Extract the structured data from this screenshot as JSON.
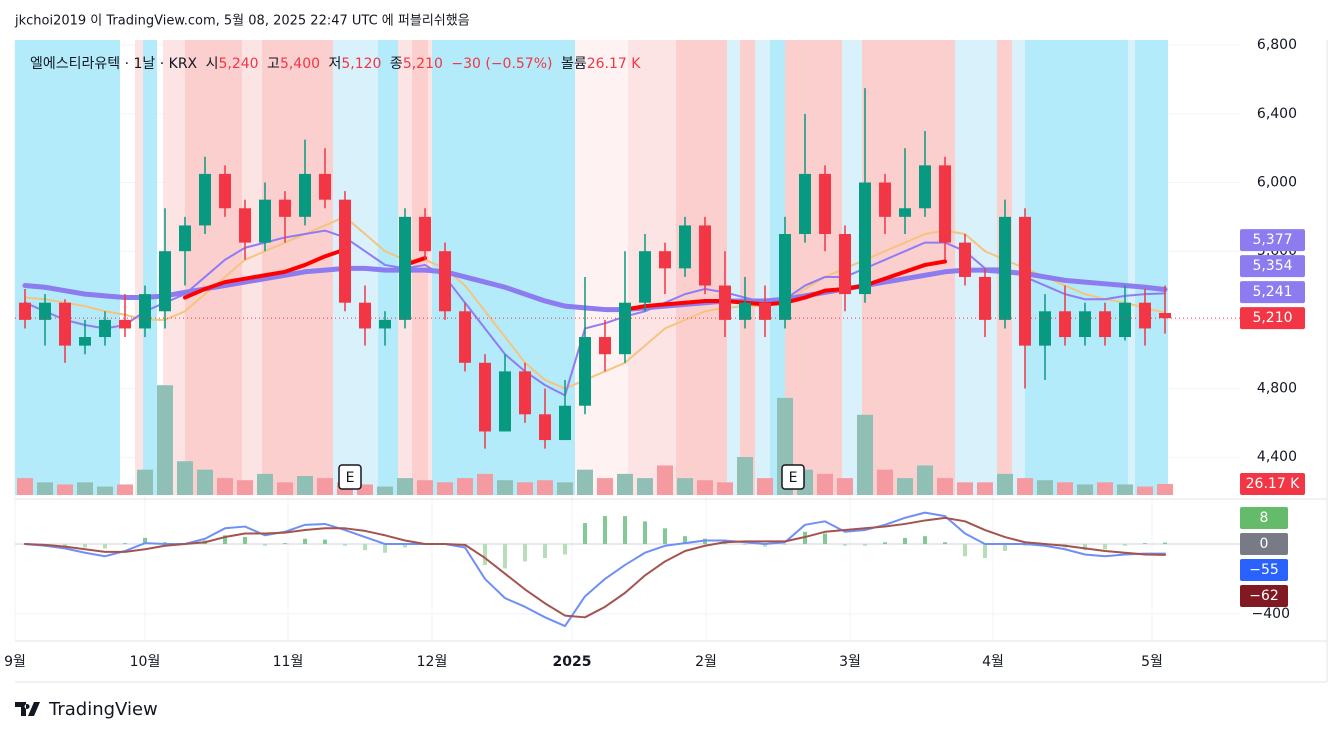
{
  "top_caption": "jkchoi2019 이 TradingView.com, 5월 08, 2025 22:47 UTC 에 퍼블리쉬했음",
  "header": {
    "symbol": "엘에스티라유텍 · 1날 · KRX",
    "open_label": "시",
    "open": "5,240",
    "high_label": "고",
    "high": "5,400",
    "low_label": "저",
    "low": "5,120",
    "close_label": "종",
    "close": "5,210",
    "change": "−30 (−0.57%)",
    "volume_label": "볼륨",
    "volume": "26.17 K"
  },
  "footer": "TradingView",
  "chart_data": {
    "type": "candlestick",
    "open": [
      5300,
      5200,
      5300,
      5050,
      5100,
      5200,
      5150,
      5250,
      5600,
      5750,
      6050,
      5850,
      5650,
      5900,
      5800,
      6050,
      5900,
      5300,
      5150,
      5200,
      5800,
      5600,
      5250,
      4950,
      4550,
      4900,
      4650,
      4500,
      4700,
      5100,
      5000,
      5300,
      5600,
      5500,
      5750,
      5400,
      5200,
      5300,
      5200,
      5700,
      6050,
      5700,
      5350,
      6000,
      5800,
      5850,
      6100,
      5650,
      5450,
      5200,
      5800,
      5050,
      5250,
      5100,
      5250,
      5100,
      5300,
      5240
    ],
    "high": [
      5380,
      5350,
      5320,
      5200,
      5250,
      5350,
      5400,
      5850,
      5800,
      6150,
      6100,
      5900,
      6000,
      5950,
      6250,
      6200,
      5950,
      5400,
      5250,
      5850,
      5850,
      5650,
      5300,
      5000,
      5000,
      4950,
      4800,
      4850,
      5450,
      5200,
      5600,
      5700,
      5650,
      5800,
      5800,
      5600,
      5450,
      5400,
      5800,
      6400,
      6100,
      5750,
      6550,
      6050,
      6200,
      6300,
      6150,
      5700,
      5500,
      5900,
      5850,
      5350,
      5400,
      5300,
      5300,
      5400,
      5380,
      5400
    ],
    "low": [
      5150,
      5050,
      4950,
      5000,
      5050,
      5100,
      5100,
      5150,
      5400,
      5700,
      5800,
      5550,
      5600,
      5650,
      5750,
      5850,
      5250,
      5050,
      5050,
      5150,
      5550,
      5200,
      4900,
      4450,
      4550,
      4600,
      4450,
      4500,
      4650,
      4900,
      4950,
      5250,
      5350,
      5450,
      5350,
      5100,
      5150,
      5100,
      5150,
      5650,
      5600,
      5250,
      5300,
      5700,
      5700,
      5800,
      5550,
      5400,
      5100,
      5150,
      4800,
      4850,
      5050,
      5050,
      5050,
      5080,
      5050,
      5120
    ],
    "close": [
      5200,
      5300,
      5050,
      5100,
      5200,
      5150,
      5350,
      5600,
      5750,
      6050,
      5850,
      5650,
      5900,
      5800,
      6050,
      5900,
      5300,
      5150,
      5200,
      5800,
      5600,
      5250,
      4950,
      4550,
      4900,
      4650,
      4500,
      4700,
      5100,
      5000,
      5300,
      5600,
      5500,
      5750,
      5400,
      5200,
      5300,
      5200,
      5700,
      6050,
      5700,
      5350,
      6000,
      5800,
      5850,
      6100,
      5650,
      5450,
      5200,
      5800,
      5050,
      5250,
      5100,
      5250,
      5100,
      5300,
      5150,
      5210
    ],
    "up_color": "#089981",
    "down_color": "#f23645",
    "last_label": "5,210",
    "xticks": [
      {
        "value": -0.5,
        "label": "9월"
      },
      {
        "value": 6,
        "label": "10월"
      },
      {
        "value": 13.15,
        "label": "11월"
      },
      {
        "value": 20.35,
        "label": "12월"
      },
      {
        "value": 27.35,
        "label": "2025"
      },
      {
        "value": 34.05,
        "label": "2월"
      },
      {
        "value": 41.25,
        "label": "3월"
      },
      {
        "value": 48.4,
        "label": "4월"
      },
      {
        "value": 56.35,
        "label": "5월"
      }
    ],
    "ylim": [
      4180,
      6830
    ],
    "yticks": [
      {
        "value": 4400,
        "label": "4,400"
      },
      {
        "value": 4800,
        "label": "4,800"
      },
      {
        "value": 5200,
        "label": "5,200"
      },
      {
        "value": 5600,
        "label": "5,600"
      },
      {
        "value": 6000,
        "label": "6,000"
      },
      {
        "value": 6400,
        "label": "6,400"
      },
      {
        "value": 6800,
        "label": "6,800"
      }
    ],
    "grid": true,
    "lines": [
      {
        "color": "#f5c47f",
        "width": 2,
        "label_color": "#8c7cf0",
        "last_label": "5,241",
        "values": [
          5330,
          5320,
          5300,
          5280,
          5250,
          5230,
          5200,
          5200,
          5250,
          5350,
          5450,
          5550,
          5600,
          5650,
          5700,
          5750,
          5800,
          5700,
          5600,
          5550,
          5550,
          5500,
          5400,
          5250,
          5100,
          4950,
          4850,
          4800,
          4850,
          4900,
          4950,
          5050,
          5150,
          5200,
          5250,
          5270,
          5280,
          5280,
          5300,
          5380,
          5450,
          5500,
          5550,
          5600,
          5650,
          5700,
          5720,
          5700,
          5600,
          5550,
          5500,
          5450,
          5400,
          5350,
          5320,
          5300,
          5270,
          5241
        ]
      },
      {
        "color": "#8f7cf5",
        "width": 2,
        "label_color": "#8c7cf0",
        "last_label": "5,354",
        "values": [
          5300,
          5250,
          5200,
          5170,
          5150,
          5170,
          5250,
          5300,
          5350,
          5450,
          5550,
          5620,
          5650,
          5680,
          5700,
          5720,
          5680,
          5600,
          5520,
          5500,
          5520,
          5450,
          5300,
          5150,
          5000,
          4900,
          4820,
          4760,
          5150,
          5180,
          5220,
          5250,
          5300,
          5350,
          5380,
          5360,
          5330,
          5300,
          5320,
          5400,
          5450,
          5450,
          5500,
          5550,
          5600,
          5650,
          5650,
          5600,
          5500,
          5500,
          5450,
          5400,
          5350,
          5320,
          5320,
          5340,
          5350,
          5354
        ]
      },
      {
        "color": "#8c7cf0",
        "width": 5,
        "label_color": "#8c7cf0",
        "last_label": "5,377",
        "values": [
          5400,
          5390,
          5370,
          5350,
          5340,
          5330,
          5330,
          5340,
          5360,
          5380,
          5400,
          5420,
          5440,
          5460,
          5480,
          5490,
          5500,
          5500,
          5490,
          5490,
          5490,
          5480,
          5450,
          5420,
          5390,
          5350,
          5310,
          5280,
          5270,
          5260,
          5260,
          5270,
          5280,
          5290,
          5300,
          5310,
          5310,
          5310,
          5320,
          5340,
          5360,
          5380,
          5400,
          5420,
          5440,
          5460,
          5480,
          5490,
          5490,
          5480,
          5470,
          5450,
          5430,
          5420,
          5410,
          5400,
          5390,
          5377
        ]
      },
      {
        "color": "#ff0000",
        "width": 4,
        "values": [
          null,
          null,
          null,
          null,
          null,
          null,
          null,
          null,
          5330,
          5380,
          5420,
          5440,
          5460,
          5480,
          5520,
          5570,
          5610,
          null,
          null,
          5520,
          5560,
          null,
          null,
          null,
          null,
          null,
          null,
          null,
          null,
          null,
          5260,
          5280,
          5290,
          5300,
          5310,
          5310,
          5300,
          5290,
          5300,
          5330,
          5370,
          5380,
          5400,
          5440,
          5480,
          5520,
          5540,
          null,
          null,
          null,
          null,
          null,
          null,
          null,
          null,
          null,
          null,
          null
        ]
      }
    ],
    "volume": {
      "ylim": [
        0,
        450000
      ],
      "last_label": "26.17 K",
      "up_color": "#8fbfb5",
      "down_color": "#f59aa0",
      "values": [
        40000,
        30000,
        25000,
        30000,
        20000,
        25000,
        60000,
        260000,
        80000,
        60000,
        40000,
        35000,
        50000,
        30000,
        45000,
        40000,
        30000,
        25000,
        20000,
        40000,
        35000,
        30000,
        40000,
        50000,
        35000,
        30000,
        35000,
        30000,
        60000,
        40000,
        50000,
        40000,
        70000,
        40000,
        35000,
        30000,
        90000,
        40000,
        230000,
        60000,
        50000,
        40000,
        190000,
        60000,
        40000,
        70000,
        40000,
        30000,
        30000,
        50000,
        40000,
        35000,
        30000,
        25000,
        30000,
        25000,
        20000,
        26170
      ]
    },
    "zones": [
      {
        "from": -0.5,
        "to": 4.75,
        "color": "#b3ebfa"
      },
      {
        "from": 5.5,
        "to": 5.9,
        "color": "#fde4e4"
      },
      {
        "from": 5.9,
        "to": 6.6,
        "color": "#b3ebfa"
      },
      {
        "from": 6.9,
        "to": 8.0,
        "color": "#fde4e4"
      },
      {
        "from": 8.0,
        "to": 10.85,
        "color": "#fccfcf"
      },
      {
        "from": 10.85,
        "to": 11.85,
        "color": "#fde4e4"
      },
      {
        "from": 11.85,
        "to": 15.4,
        "color": "#fccfcf"
      },
      {
        "from": 15.4,
        "to": 17.65,
        "color": "#d9f1fb"
      },
      {
        "from": 17.65,
        "to": 18.65,
        "color": "#b3ebfa"
      },
      {
        "from": 18.65,
        "to": 19.35,
        "color": "#fde4e4"
      },
      {
        "from": 19.35,
        "to": 20.15,
        "color": "#fccfcf"
      },
      {
        "from": 20.15,
        "to": 20.35,
        "color": "#fde4e4"
      },
      {
        "from": 20.35,
        "to": 27.5,
        "color": "#b3ebfa"
      },
      {
        "from": 27.5,
        "to": 30.15,
        "color": "#fff2f2"
      },
      {
        "from": 30.15,
        "to": 32.55,
        "color": "#fde4e4"
      },
      {
        "from": 32.55,
        "to": 35.1,
        "color": "#fccfcf"
      },
      {
        "from": 35.1,
        "to": 35.75,
        "color": "#d9f1fb"
      },
      {
        "from": 35.75,
        "to": 36.5,
        "color": "#fccfcf"
      },
      {
        "from": 36.5,
        "to": 37.25,
        "color": "#d9f1fb"
      },
      {
        "from": 37.25,
        "to": 38.0,
        "color": "#b3ebfa"
      },
      {
        "from": 38.0,
        "to": 40.85,
        "color": "#fccfcf"
      },
      {
        "from": 40.85,
        "to": 41.85,
        "color": "#d9f1fb"
      },
      {
        "from": 41.85,
        "to": 46.5,
        "color": "#fccfcf"
      },
      {
        "from": 46.5,
        "to": 48.6,
        "color": "#d9f1fb"
      },
      {
        "from": 48.6,
        "to": 49.35,
        "color": "#fccfcf"
      },
      {
        "from": 49.35,
        "to": 50.0,
        "color": "#d9f1fb"
      },
      {
        "from": 50.0,
        "to": 55.15,
        "color": "#b3ebfa"
      },
      {
        "from": 55.15,
        "to": 55.5,
        "color": "#d9f1fb"
      },
      {
        "from": 55.5,
        "to": 57.15,
        "color": "#b3ebfa"
      }
    ],
    "events": [
      {
        "x": 16.25,
        "label": "E"
      },
      {
        "x": 38.4,
        "label": "E"
      }
    ],
    "macd": {
      "ylim": [
        -550,
        235
      ],
      "yticks": [
        {
          "value": -400,
          "label": "−400"
        }
      ],
      "zero_line": 0,
      "zero_color": "#787b86",
      "histogram": {
        "up_color": "#81c995",
        "down_color": "#b5deb9",
        "last_label": "8",
        "label_color": "#66bb6a",
        "values": [
          0,
          -5,
          -10,
          -20,
          -25,
          5,
          35,
          10,
          0,
          20,
          50,
          40,
          -10,
          5,
          30,
          25,
          -10,
          -35,
          -50,
          -20,
          0,
          0,
          -15,
          -120,
          -140,
          -100,
          -80,
          -60,
          120,
          160,
          160,
          130,
          90,
          45,
          30,
          10,
          -5,
          -15,
          -5,
          70,
          60,
          -10,
          -10,
          10,
          35,
          45,
          10,
          -70,
          -80,
          -40,
          -10,
          -10,
          -20,
          -35,
          -30,
          -10,
          5,
          8
        ]
      },
      "lines": [
        {
          "color": "#6e8ff5",
          "last_label": "−55",
          "label_color": "#2962ff",
          "values": [
            0,
            -10,
            -25,
            -50,
            -70,
            -40,
            5,
            0,
            0,
            30,
            90,
            100,
            50,
            70,
            110,
            115,
            80,
            40,
            0,
            0,
            0,
            0,
            -20,
            -200,
            -310,
            -360,
            -420,
            -470,
            -300,
            -200,
            -120,
            -50,
            -10,
            5,
            20,
            20,
            10,
            0,
            10,
            110,
            130,
            70,
            80,
            110,
            150,
            180,
            160,
            60,
            0,
            0,
            0,
            -10,
            -30,
            -60,
            -70,
            -60,
            -55,
            -55
          ]
        },
        {
          "color": "#a3544f",
          "last_label": "−62",
          "label_color": "#801922",
          "values": [
            0,
            -5,
            -15,
            -30,
            -45,
            -45,
            -30,
            -10,
            0,
            10,
            40,
            60,
            60,
            65,
            80,
            90,
            90,
            75,
            50,
            20,
            0,
            0,
            -5,
            -80,
            -170,
            -260,
            -340,
            -410,
            -420,
            -360,
            -280,
            -180,
            -100,
            -40,
            -10,
            10,
            15,
            15,
            15,
            40,
            70,
            80,
            90,
            100,
            115,
            135,
            150,
            130,
            80,
            40,
            10,
            0,
            -10,
            -25,
            -40,
            -50,
            -60,
            -62
          ]
        }
      ]
    }
  }
}
